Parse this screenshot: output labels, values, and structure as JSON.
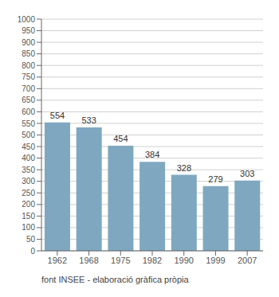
{
  "chart_data": {
    "type": "bar",
    "categories": [
      "1962",
      "1968",
      "1975",
      "1982",
      "1990",
      "1999",
      "2007"
    ],
    "values": [
      554,
      533,
      454,
      384,
      328,
      279,
      303
    ],
    "color": "#7fa8c0",
    "ylim": [
      0,
      1000
    ],
    "yticks": [
      0,
      50,
      100,
      150,
      200,
      250,
      300,
      350,
      400,
      450,
      500,
      550,
      600,
      650,
      700,
      750,
      800,
      850,
      900,
      950,
      1000
    ],
    "grid": true,
    "data_labels": true,
    "annotations": [
      "font INSEE - elaboració gràfica pròpia"
    ]
  }
}
